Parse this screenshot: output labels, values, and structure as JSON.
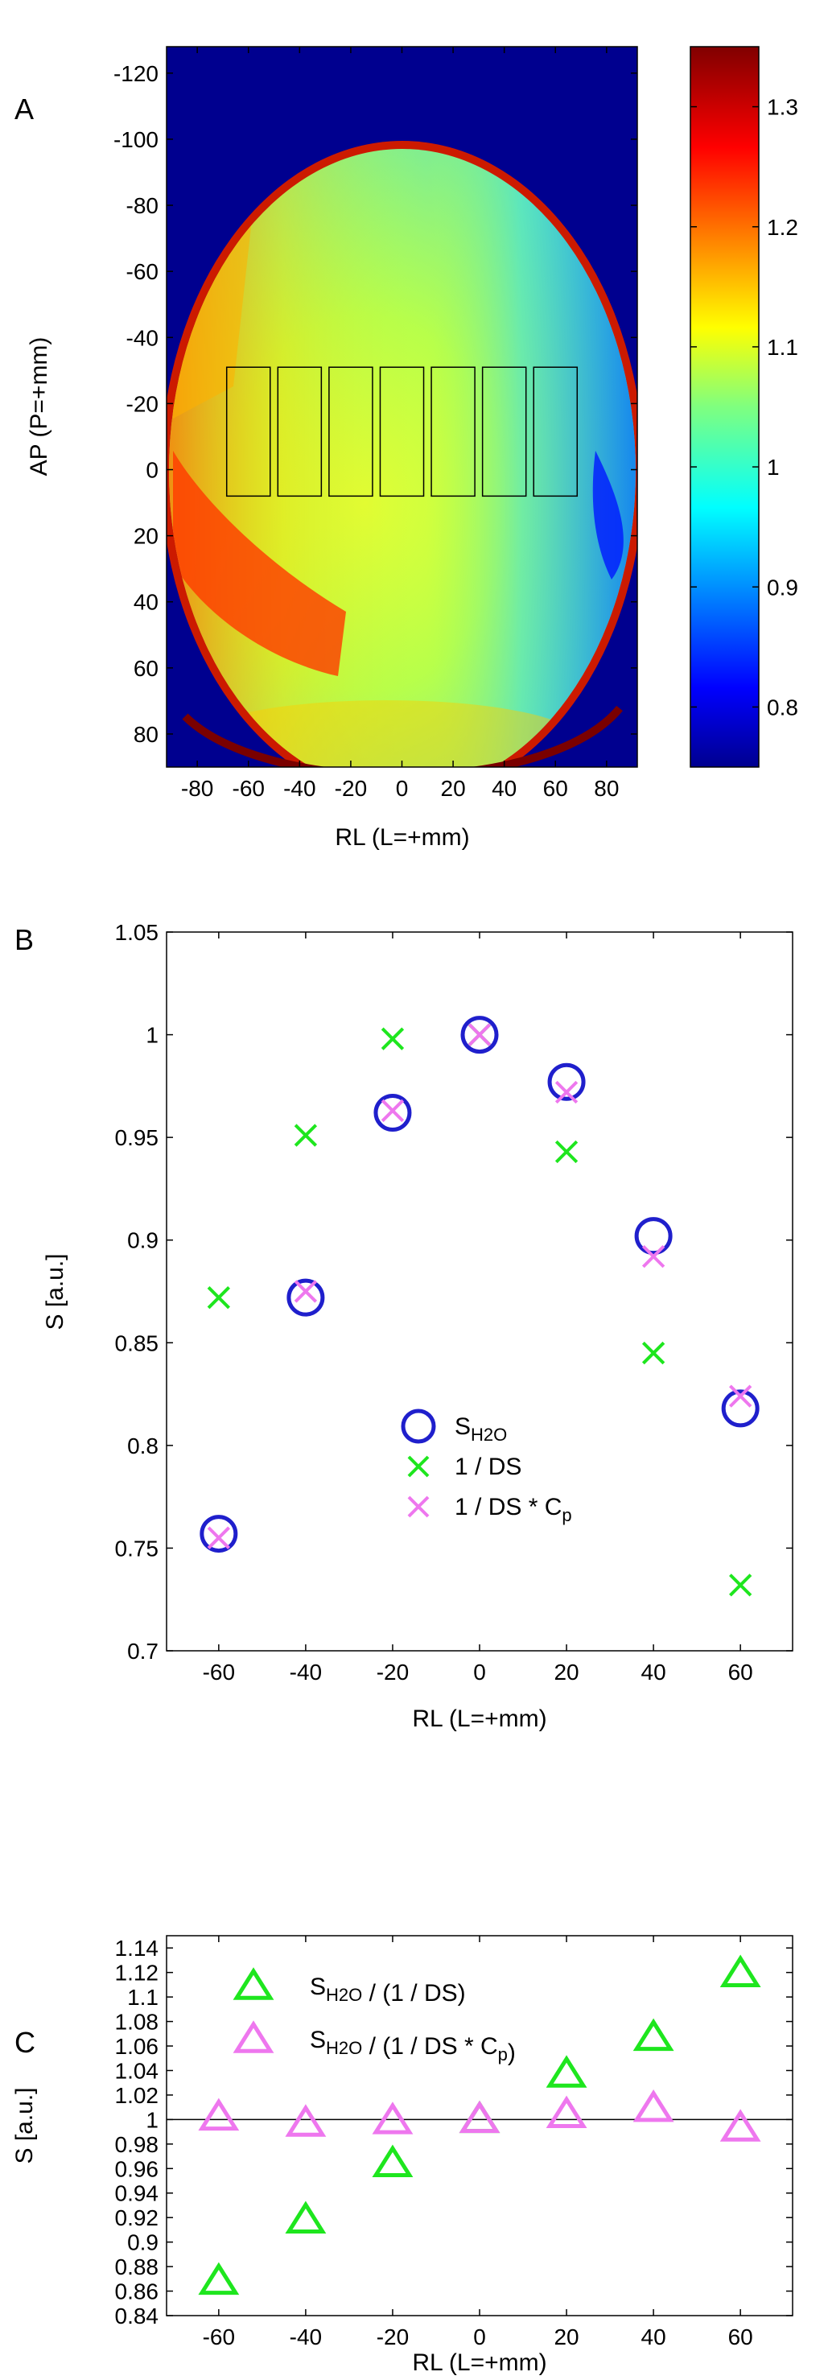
{
  "figure": {
    "panel_labels": [
      "A",
      "B",
      "C"
    ]
  },
  "chart_data": [
    {
      "type": "heatmap",
      "panel": "A",
      "xlabel": "RL (L=+mm)",
      "ylabel": "AP (P=+mm)",
      "xlim": [
        -92,
        92
      ],
      "ylim": [
        -128,
        90
      ],
      "y_reversed": true,
      "xticks": [
        -80,
        -60,
        -40,
        -20,
        0,
        20,
        40,
        60,
        80
      ],
      "yticks": [
        -120,
        -100,
        -80,
        -60,
        -40,
        -20,
        0,
        20,
        40,
        60,
        80
      ],
      "background_color": "#00008f",
      "roi_boxes": {
        "count": 7,
        "centers_x": [
          -60,
          -40,
          -20,
          0,
          20,
          40,
          60
        ],
        "width_mm": 17,
        "y_range": [
          -31,
          8
        ]
      },
      "colorbar": {
        "min": 0.75,
        "max": 1.35,
        "ticks": [
          0.8,
          0.9,
          1,
          1.1,
          1.2,
          1.3
        ],
        "colormap": "jet"
      }
    },
    {
      "type": "scatter",
      "panel": "B",
      "xlabel": "RL (L=+mm)",
      "ylabel": "S [a.u.]",
      "xlim": [
        -72,
        72
      ],
      "ylim": [
        0.7,
        1.05
      ],
      "xticks": [
        -60,
        -40,
        -20,
        0,
        20,
        40,
        60
      ],
      "yticks": [
        0.7,
        0.75,
        0.8,
        0.85,
        0.9,
        0.95,
        1,
        1.05
      ],
      "legend_position": "lower-center",
      "x": [
        -60,
        -40,
        -20,
        0,
        20,
        40,
        60
      ],
      "series": [
        {
          "name": "S",
          "sub": "H2O",
          "suffix": "",
          "marker": "circle",
          "color": "#1f1fcc",
          "values": [
            0.757,
            0.872,
            0.962,
            1.0,
            0.977,
            0.902,
            0.818
          ]
        },
        {
          "name": "1 / DS",
          "sub": "",
          "suffix": "",
          "marker": "x",
          "color": "#1ee61e",
          "values": [
            0.872,
            0.951,
            0.998,
            1.0,
            0.943,
            0.845,
            0.732
          ]
        },
        {
          "name": "1 / DS * C",
          "sub": "p",
          "suffix": "",
          "marker": "x",
          "color": "#ee77ee",
          "values": [
            0.755,
            0.875,
            0.963,
            1.0,
            0.972,
            0.892,
            0.824
          ]
        }
      ]
    },
    {
      "type": "scatter",
      "panel": "C",
      "xlabel": "RL (L=+mm)",
      "ylabel": "S [a.u.]",
      "xlim": [
        -72,
        72
      ],
      "ylim": [
        0.84,
        1.15
      ],
      "xticks": [
        -60,
        -40,
        -20,
        0,
        20,
        40,
        60
      ],
      "yticks": [
        0.84,
        0.86,
        0.88,
        0.9,
        0.92,
        0.94,
        0.96,
        0.98,
        1,
        1.02,
        1.04,
        1.06,
        1.08,
        1.1,
        1.12,
        1.14
      ],
      "reference_line": 1,
      "legend_position": "top-left",
      "x": [
        -60,
        -40,
        -20,
        0,
        20,
        40,
        60
      ],
      "series": [
        {
          "name": "S",
          "sub": "H2O",
          "suffix": " / (1 / DS)",
          "marker": "triangle",
          "color": "#1ee61e",
          "values": [
            0.868,
            0.918,
            0.964,
            1.0,
            1.037,
            1.067,
            1.119
          ]
        },
        {
          "name": "S",
          "sub": "H2O",
          "suffix": " / (1 / DS * C",
          "sub2": "p",
          "suffix2": ")",
          "marker": "triangle",
          "color": "#ee77ee",
          "values": [
            1.002,
            0.997,
            0.999,
            1.0,
            1.004,
            1.009,
            0.993
          ]
        }
      ]
    }
  ]
}
